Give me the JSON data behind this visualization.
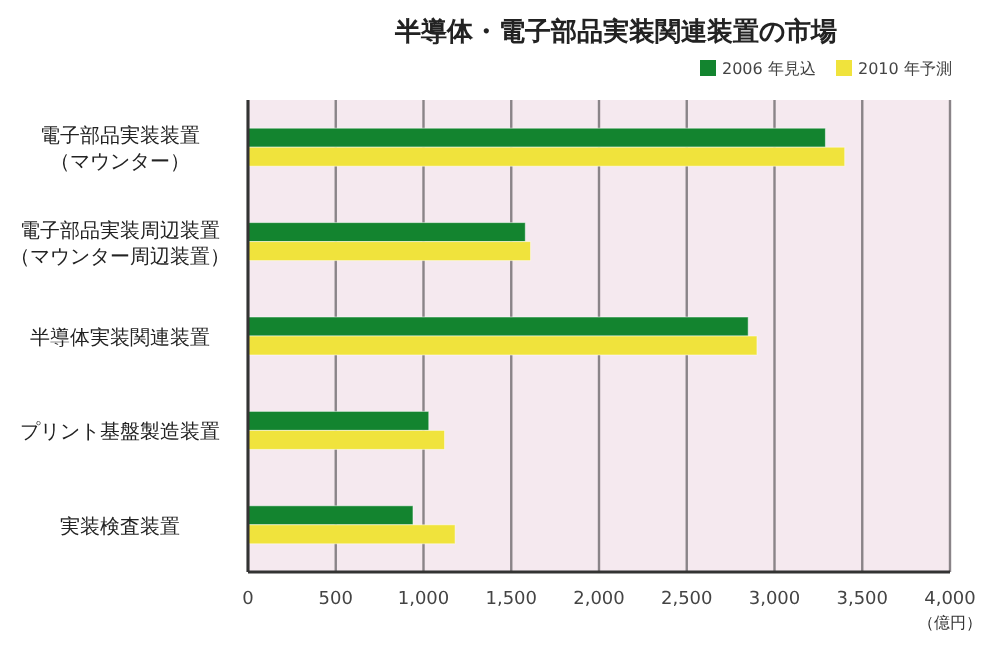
{
  "chart_data": {
    "type": "bar",
    "orientation": "horizontal",
    "title": "半導体・電子部品実装関連装置の市場",
    "categories": [
      "電子部品実装装置（マウンター）",
      "電子部品実装周辺装置（マウンター周辺装置）",
      "半導体実装関連装置",
      "プリント基盤製造装置",
      "実装検査装置"
    ],
    "series": [
      {
        "name": "2006 年見込",
        "color": "#13842f",
        "values": [
          3290,
          1580,
          2850,
          1030,
          940
        ]
      },
      {
        "name": "2010 年予測",
        "color": "#f0e33c",
        "values": [
          3400,
          1610,
          2900,
          1120,
          1180
        ]
      }
    ],
    "xlabel": "（億円）",
    "xlim": [
      0,
      4000
    ],
    "xticks": [
      {
        "value": 0,
        "label": "0"
      },
      {
        "value": 500,
        "label": "500"
      },
      {
        "value": 1000,
        "label": "1,000"
      },
      {
        "value": 1500,
        "label": "1,500"
      },
      {
        "value": 2000,
        "label": "2,000"
      },
      {
        "value": 2500,
        "label": "2,500"
      },
      {
        "value": 3000,
        "label": "3,000"
      },
      {
        "value": 3500,
        "label": "3,500"
      },
      {
        "value": 4000,
        "label": "4,000"
      }
    ],
    "grid": "x",
    "legend": "top right"
  }
}
